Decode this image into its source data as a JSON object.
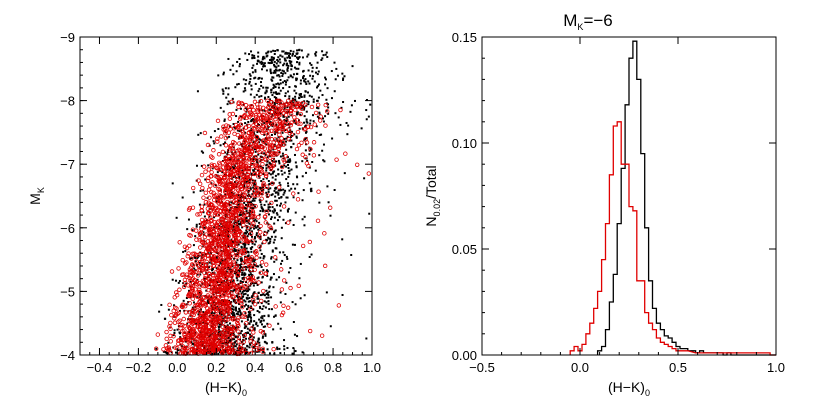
{
  "chart_data": [
    {
      "type": "scatter",
      "title": "",
      "xlabel": {
        "main": "(H−K)",
        "sub": "0"
      },
      "ylabel": {
        "main": "M",
        "sub": "K"
      },
      "xlim": [
        -0.5,
        1.0
      ],
      "ylim": [
        -4,
        -9
      ],
      "y_inverted": true,
      "xticks": [
        -0.4,
        -0.2,
        0.0,
        0.2,
        0.4,
        0.6,
        0.8,
        1.0
      ],
      "xtick_labels": [
        "−0.4",
        "−0.2",
        "0.0",
        "0.2",
        "0.4",
        "0.6",
        "0.8",
        "1.0"
      ],
      "yticks": [
        -4,
        -5,
        -6,
        -7,
        -8,
        -9
      ],
      "ytick_labels": [
        "−4",
        "−5",
        "−6",
        "−7",
        "−8",
        "−9"
      ],
      "grid": false,
      "series": [
        {
          "color": "#000000",
          "marker": "dot",
          "distribution": [
            {
              "mk": -4.0,
              "center": 0.22,
              "spread": 0.13
            },
            {
              "mk": -5.0,
              "center": 0.27,
              "spread": 0.12
            },
            {
              "mk": -6.0,
              "center": 0.32,
              "spread": 0.11
            },
            {
              "mk": -7.0,
              "center": 0.42,
              "spread": 0.13
            },
            {
              "mk": -8.0,
              "center": 0.55,
              "spread": 0.15
            },
            {
              "mk": -8.8,
              "center": 0.5,
              "spread": 0.1
            }
          ]
        },
        {
          "color": "#e00000",
          "marker": "open-circle",
          "distribution": [
            {
              "mk": -4.0,
              "center": 0.14,
              "spread": 0.1
            },
            {
              "mk": -5.0,
              "center": 0.19,
              "spread": 0.09
            },
            {
              "mk": -6.0,
              "center": 0.23,
              "spread": 0.08
            },
            {
              "mk": -7.0,
              "center": 0.32,
              "spread": 0.09
            },
            {
              "mk": -8.0,
              "center": 0.5,
              "spread": 0.12
            }
          ]
        }
      ]
    },
    {
      "type": "line",
      "title": {
        "main": "M",
        "sub": "K",
        "suffix": "=−6"
      },
      "xlabel": {
        "main": "(H−K)",
        "sub": "0"
      },
      "ylabel": {
        "main": "N",
        "sub": "0.02",
        "suffix": "/Total"
      },
      "xlim": [
        -0.5,
        1.0
      ],
      "ylim": [
        0,
        0.15
      ],
      "xticks": [
        -0.5,
        0.0,
        0.5,
        1.0
      ],
      "xtick_labels": [
        "−0.5",
        "0.0",
        "0.5",
        "1.0"
      ],
      "yticks": [
        0.0,
        0.05,
        0.1,
        0.15
      ],
      "ytick_labels": [
        "0.00",
        "0.05",
        "0.10",
        "0.15"
      ],
      "grid": false,
      "bin_width": 0.02,
      "series": [
        {
          "color": "#000000",
          "x": [
            0.1,
            0.12,
            0.14,
            0.16,
            0.18,
            0.2,
            0.22,
            0.24,
            0.26,
            0.28,
            0.3,
            0.32,
            0.34,
            0.36,
            0.38,
            0.4,
            0.42,
            0.44,
            0.46,
            0.48,
            0.5,
            0.52,
            0.54,
            0.56,
            0.58,
            0.6,
            0.62,
            0.64,
            0.66,
            0.68,
            0.7,
            0.72,
            0.74,
            0.76,
            0.78
          ],
          "values": [
            0.002,
            0.004,
            0.012,
            0.025,
            0.038,
            0.062,
            0.088,
            0.118,
            0.14,
            0.148,
            0.13,
            0.095,
            0.06,
            0.035,
            0.022,
            0.015,
            0.012,
            0.009,
            0.008,
            0.006,
            0.004,
            0.003,
            0.003,
            0.002,
            0.002,
            0.001,
            0.002,
            0.001,
            0.001,
            0.001,
            0.001,
            0.001,
            0.0,
            0.001,
            0.0
          ]
        },
        {
          "color": "#e00000",
          "x": [
            -0.04,
            -0.02,
            0.0,
            0.02,
            0.04,
            0.06,
            0.08,
            0.1,
            0.12,
            0.14,
            0.16,
            0.18,
            0.2,
            0.22,
            0.24,
            0.26,
            0.28,
            0.3,
            0.32,
            0.34,
            0.36,
            0.38,
            0.4,
            0.42,
            0.44,
            0.46,
            0.48,
            0.5,
            0.54,
            0.6,
            0.66,
            0.72,
            0.78,
            0.84,
            0.9,
            0.96
          ],
          "values": [
            0.002,
            0.004,
            0.002,
            0.005,
            0.01,
            0.015,
            0.022,
            0.03,
            0.045,
            0.062,
            0.085,
            0.108,
            0.11,
            0.09,
            0.09,
            0.07,
            0.068,
            0.035,
            0.035,
            0.02,
            0.015,
            0.012,
            0.008,
            0.006,
            0.005,
            0.004,
            0.003,
            0.002,
            0.002,
            0.001,
            0.001,
            0.001,
            0.001,
            0.001,
            0.001,
            0.001
          ]
        }
      ]
    }
  ]
}
